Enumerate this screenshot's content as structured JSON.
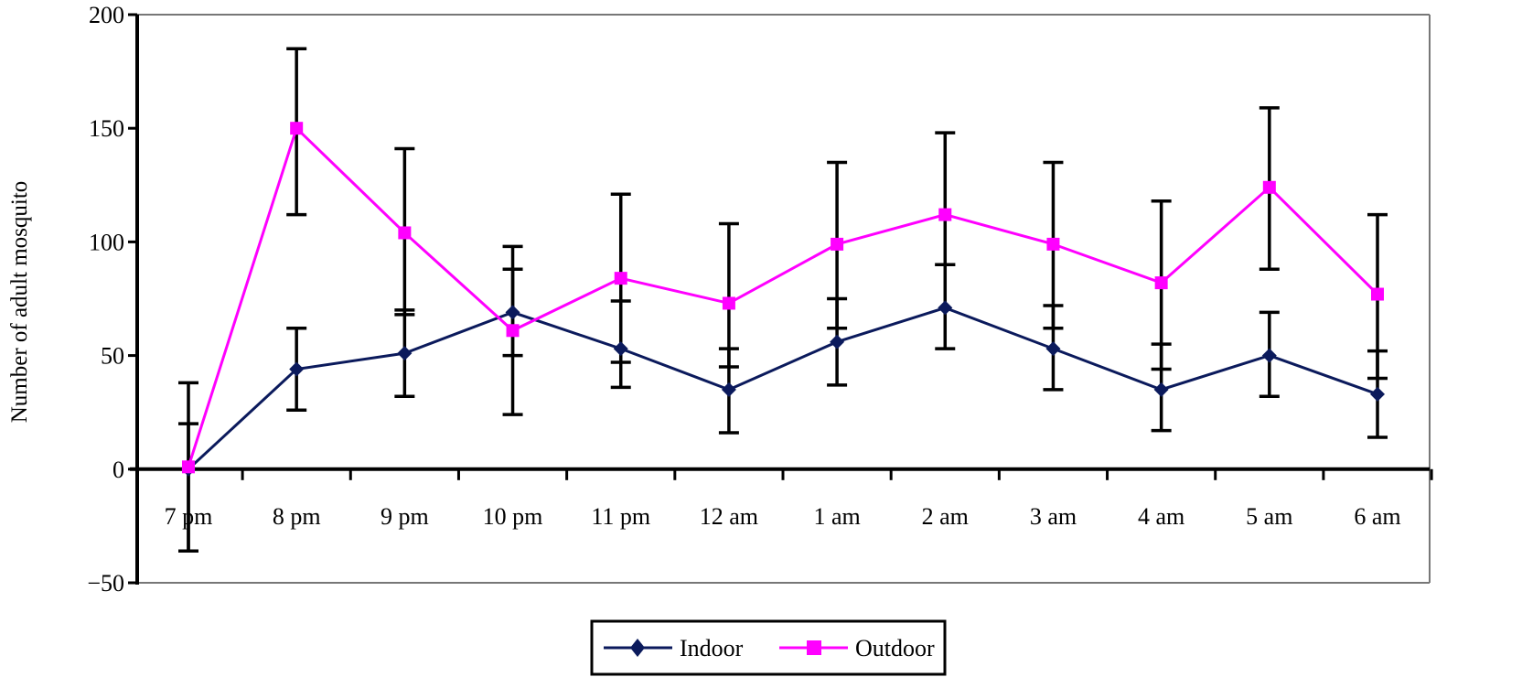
{
  "chart_data": {
    "type": "line",
    "title": "",
    "xlabel": "",
    "ylabel": "Number of adult mosquito",
    "ylim": [
      -50,
      200
    ],
    "yticks": [
      "200",
      "150",
      "100",
      "50",
      "0",
      "−50"
    ],
    "ytick_values": [
      200,
      150,
      100,
      50,
      0,
      -50
    ],
    "categories": [
      "7 pm",
      "8 pm",
      "9 pm",
      "10 pm",
      "11 pm",
      "12 am",
      "1 am",
      "2 am",
      "3 am",
      "4 am",
      "5 am",
      "6 am"
    ],
    "grid": false,
    "legend_position": "bottom-center",
    "series": [
      {
        "name": "Indoor",
        "color": "#0b1a5c",
        "marker": "diamond",
        "values": [
          0,
          44,
          51,
          69,
          53,
          35,
          56,
          71,
          53,
          35,
          50,
          33
        ],
        "err_upper": [
          20,
          62,
          70,
          88,
          74,
          53,
          75,
          90,
          72,
          55,
          69,
          52
        ],
        "err_lower": [
          -36,
          26,
          32,
          50,
          36,
          16,
          37,
          53,
          35,
          17,
          32,
          14
        ]
      },
      {
        "name": "Outdoor",
        "color": "#ff00ff",
        "marker": "square",
        "values": [
          1,
          150,
          104,
          61,
          84,
          73,
          99,
          112,
          99,
          82,
          124,
          77
        ],
        "err_upper": [
          38,
          185,
          141,
          98,
          121,
          108,
          135,
          148,
          135,
          118,
          159,
          112
        ],
        "err_lower": [
          -36,
          112,
          68,
          24,
          47,
          45,
          62,
          90,
          62,
          44,
          88,
          40
        ]
      }
    ]
  }
}
